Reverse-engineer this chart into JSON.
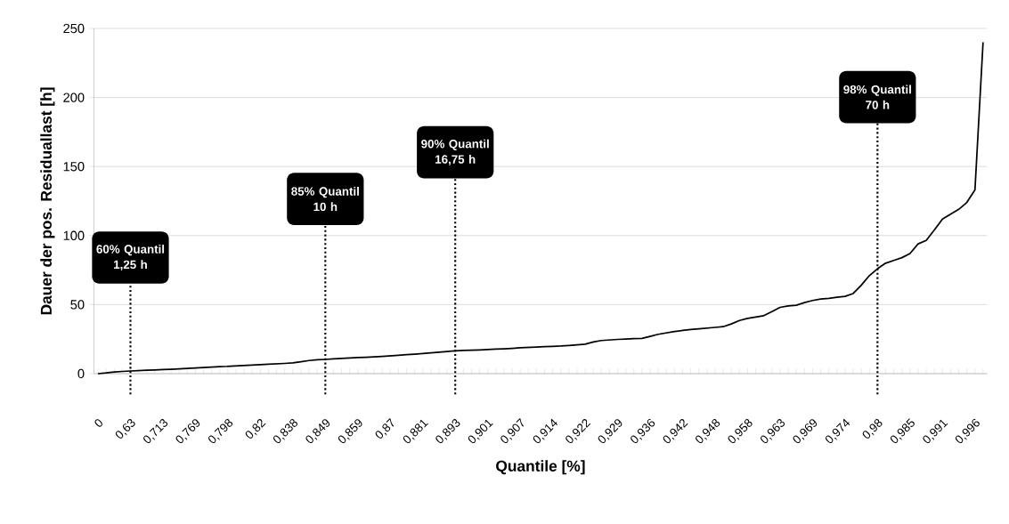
{
  "chart_data": {
    "type": "line",
    "xlabel": "Quantile [%]",
    "ylabel": "Dauer der pos. Residuallast [h]",
    "categories": [
      "0",
      null,
      null,
      null,
      "0,63",
      null,
      null,
      null,
      "0,713",
      null,
      null,
      null,
      "0,769",
      null,
      null,
      null,
      "0,798",
      null,
      null,
      null,
      "0,82",
      null,
      null,
      null,
      "0,838",
      null,
      null,
      null,
      "0,849",
      null,
      null,
      null,
      "0,859",
      null,
      null,
      null,
      "0,87",
      null,
      null,
      null,
      "0,881",
      null,
      null,
      null,
      "0,893",
      null,
      null,
      null,
      "0,901",
      null,
      null,
      null,
      "0,907",
      null,
      null,
      null,
      "0,914",
      null,
      null,
      null,
      "0,922",
      null,
      null,
      null,
      "0,929",
      null,
      null,
      null,
      "0,936",
      null,
      null,
      null,
      "0,942",
      null,
      null,
      null,
      "0,948",
      null,
      null,
      null,
      "0,958",
      null,
      null,
      null,
      "0,963",
      null,
      null,
      null,
      "0,969",
      null,
      null,
      null,
      "0,974",
      null,
      null,
      null,
      "0,98",
      null,
      null,
      null,
      "0,985",
      null,
      null,
      null,
      "0,991",
      null,
      null,
      null,
      "0,996",
      null
    ],
    "series": [
      {
        "color": "#000000",
        "values": [
          0,
          0.5,
          1.2,
          1.6,
          1.9,
          2.2,
          2.5,
          2.7,
          3,
          3.2,
          3.5,
          3.8,
          4.1,
          4.4,
          4.7,
          5,
          5.3,
          5.6,
          5.9,
          6.2,
          6.5,
          6.8,
          7.1,
          7.4,
          7.8,
          8.6,
          9.5,
          10,
          10.3,
          10.7,
          11,
          11.3,
          11.6,
          11.9,
          12.2,
          12.5,
          12.9,
          13.3,
          13.7,
          14.1,
          14.5,
          15,
          15.5,
          16,
          16.5,
          16.8,
          17,
          17.2,
          17.5,
          17.8,
          18,
          18.3,
          18.7,
          19,
          19.3,
          19.5,
          19.8,
          20,
          20.4,
          20.8,
          21.3,
          23,
          24,
          24.4,
          24.8,
          25,
          25.3,
          25.5,
          27,
          28.5,
          29.5,
          30.5,
          31.3,
          32,
          32.5,
          33,
          33.5,
          34,
          36,
          38.5,
          40,
          41,
          42,
          45,
          48,
          49,
          49.5,
          51.5,
          53,
          54,
          54.5,
          55.3,
          56,
          58,
          64,
          71,
          76,
          80,
          82,
          84,
          87,
          94,
          96.5,
          104,
          112,
          115.5,
          119,
          124,
          133,
          240
        ]
      }
    ],
    "ylim": [
      0,
      250
    ],
    "yticks": [
      0,
      50,
      100,
      150,
      200,
      250
    ],
    "grid": "y",
    "ref_lines": [
      {
        "axis": "x",
        "value": "0,63",
        "label": "60% Quantil 1,25 h",
        "line_style": "dotted"
      },
      {
        "axis": "x",
        "value": "0,849",
        "label": "85% Quantil 10 h",
        "line_style": "dotted"
      },
      {
        "axis": "x",
        "value": "0,893",
        "label": "90% Quantil 16,75 h",
        "line_style": "dotted"
      },
      {
        "axis": "x",
        "value": "0,98",
        "label": "98% Quantil 70 h",
        "line_style": "dotted"
      }
    ]
  }
}
